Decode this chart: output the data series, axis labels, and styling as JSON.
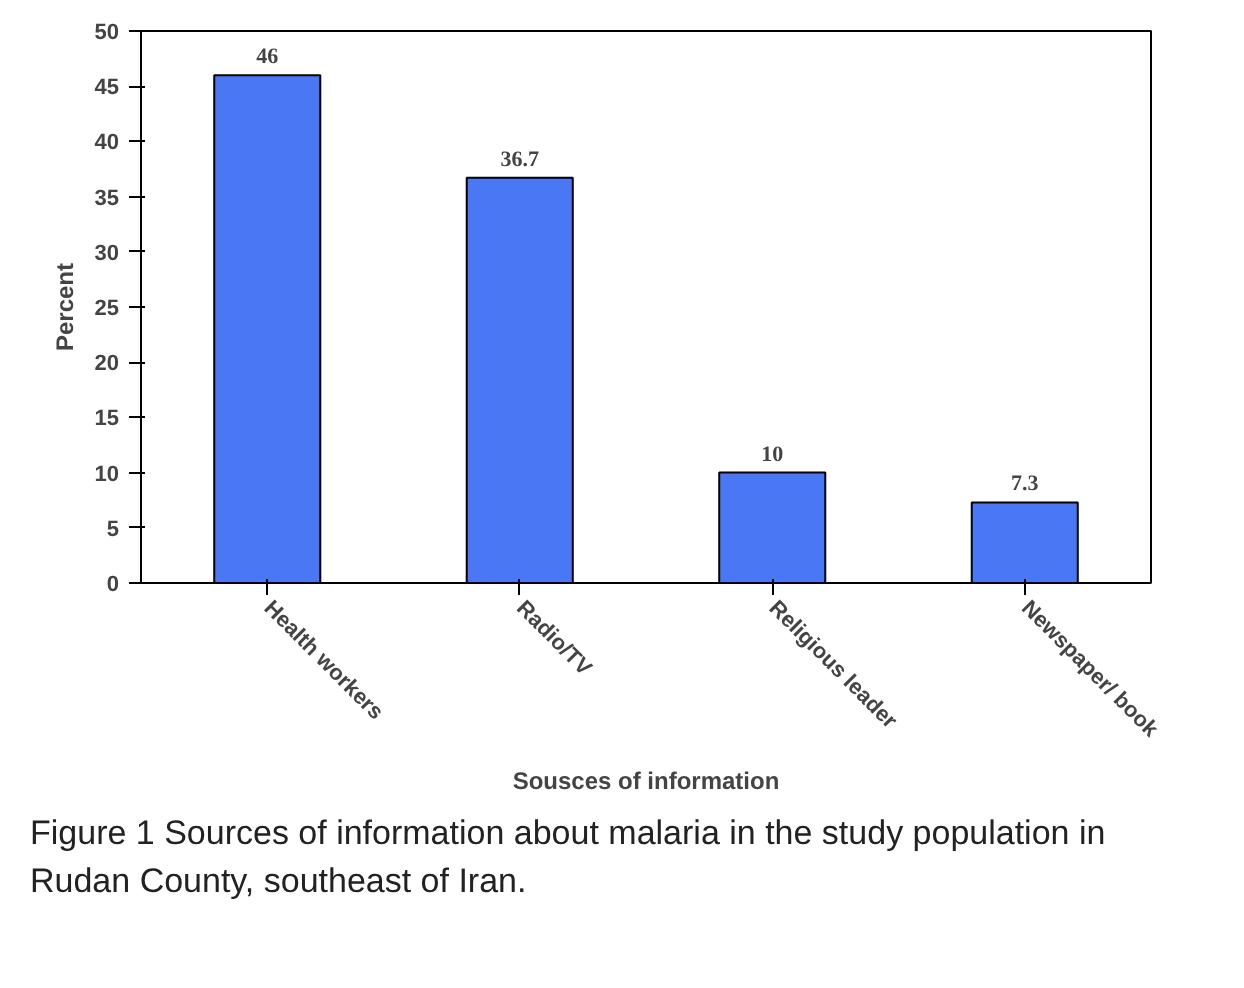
{
  "chart_data": {
    "type": "bar",
    "xlabel": "Sousces of information",
    "ylabel": "Percent",
    "categories": [
      "Health workers",
      "Radio/TV",
      "Religious leader",
      "Newspaper/ book"
    ],
    "values": [
      46,
      36.7,
      10,
      7.3
    ],
    "color": "#4a78f5",
    "data_labels": true,
    "grid": false,
    "legend": false,
    "ylim": [
      0,
      50
    ],
    "yticks": [
      0,
      5,
      10,
      15,
      20,
      25,
      30,
      35,
      40,
      45,
      50
    ],
    "annotations": [
      "Figure 1 Sources of information about malaria in the study population in Rudan County, southeast of Iran."
    ]
  }
}
